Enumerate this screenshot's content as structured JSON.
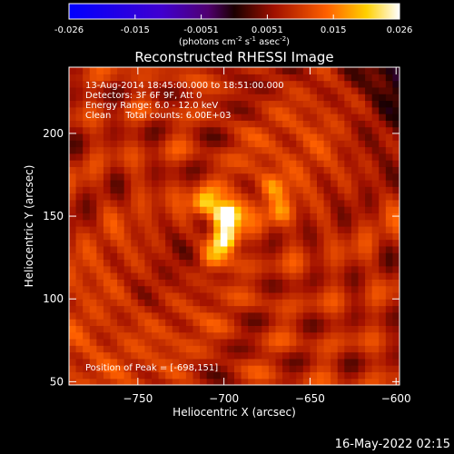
{
  "chart_data": {
    "type": "heatmap",
    "title": "Reconstructed RHESSI Image",
    "xlabel": "Heliocentric X (arcsec)",
    "ylabel": "Heliocentric Y (arcsec)",
    "xlim": [
      -790,
      -598
    ],
    "ylim": [
      48,
      240
    ],
    "x_ticks": [
      -750,
      -700,
      -650,
      -600
    ],
    "y_ticks": [
      50,
      100,
      150,
      200
    ],
    "colorbar": {
      "ticks": [
        "-0.026",
        "-0.015",
        "-0.0051",
        "0.0051",
        "0.015",
        "0.026"
      ],
      "units": "(photons cm",
      "units_sup1": "-2",
      "units_mid": " s",
      "units_sup2": "-1",
      "units_end": " asec",
      "units_sup3": "-2",
      "units_close": ")",
      "range": [
        -0.026,
        0.026
      ]
    },
    "info_lines": [
      "13-Aug-2014 18:45:00.000 to 18:51:00.000",
      "Detectors: 3F 6F 9F, Att 0",
      "Energy Range: 6.0 - 12.0 keV",
      "Clean     Total counts: 6.00E+03"
    ],
    "peak_label": "Position of Peak = [-698,151]",
    "peak": [
      -698,
      151
    ],
    "sources": [
      {
        "x": -698,
        "y": 151,
        "amp": 0.026
      },
      {
        "x": -700,
        "y": 136,
        "amp": 0.022
      },
      {
        "x": -712,
        "y": 158,
        "amp": 0.014
      },
      {
        "x": -668,
        "y": 152,
        "amp": 0.008
      },
      {
        "x": -672,
        "y": 168,
        "amp": 0.006
      },
      {
        "x": -708,
        "y": 124,
        "amp": 0.008
      }
    ],
    "timestamp": "16-May-2022 02:15"
  }
}
